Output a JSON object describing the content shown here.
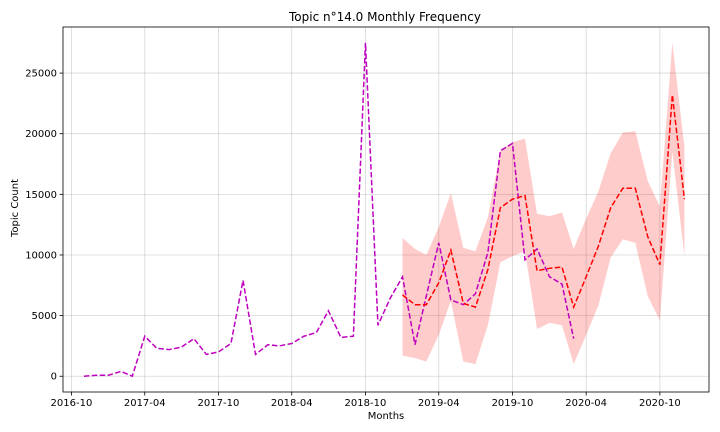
{
  "chart_data": {
    "type": "line",
    "title": "Topic n°14.0 Monthly Frequency",
    "xlabel": "Months",
    "ylabel": "Topic Count",
    "xlim": [
      "2016-09-10",
      "2021-01-31"
    ],
    "ylim": [
      -1300,
      28800
    ],
    "grid": true,
    "x_ticks": [
      "2016-10",
      "2017-04",
      "2017-10",
      "2018-04",
      "2018-10",
      "2019-04",
      "2019-10",
      "2020-04",
      "2020-10"
    ],
    "y_ticks": [
      0,
      5000,
      10000,
      15000,
      20000,
      25000
    ],
    "colors": {
      "observed": "#bf00bf",
      "forecast": "#ff0000",
      "band": "#ff0000"
    },
    "observed": {
      "x": [
        "2016-11",
        "2016-12",
        "2017-01",
        "2017-02",
        "2017-03",
        "2017-04",
        "2017-05",
        "2017-06",
        "2017-07",
        "2017-08",
        "2017-09",
        "2017-10",
        "2017-11",
        "2017-12",
        "2018-01",
        "2018-02",
        "2018-03",
        "2018-04",
        "2018-05",
        "2018-06",
        "2018-07",
        "2018-08",
        "2018-09",
        "2018-10",
        "2018-11",
        "2018-12",
        "2019-01",
        "2019-02",
        "2019-03",
        "2019-04",
        "2019-05",
        "2019-06",
        "2019-07",
        "2019-08",
        "2019-09",
        "2019-10",
        "2019-11",
        "2019-12",
        "2020-01",
        "2020-02",
        "2020-03"
      ],
      "y": [
        0,
        80,
        80,
        400,
        0,
        3300,
        2300,
        2200,
        2400,
        3100,
        1800,
        2000,
        2700,
        7900,
        1800,
        2600,
        2500,
        2700,
        3300,
        3600,
        5400,
        3200,
        3300,
        27500,
        4200,
        6400,
        8200,
        2600,
        6600,
        11000,
        6300,
        5900,
        6800,
        10200,
        18600,
        19200,
        9600,
        10500,
        8200,
        7600,
        3100
      ]
    },
    "forecast": {
      "x": [
        "2019-01",
        "2019-02",
        "2019-03",
        "2019-04",
        "2019-05",
        "2019-06",
        "2019-07",
        "2019-08",
        "2019-09",
        "2019-10",
        "2019-11",
        "2019-12",
        "2020-01",
        "2020-02",
        "2020-03",
        "2020-04",
        "2020-05",
        "2020-06",
        "2020-07",
        "2020-08",
        "2020-09",
        "2020-10",
        "2020-11",
        "2020-12"
      ],
      "y": [
        6700,
        5900,
        5900,
        7700,
        10400,
        6000,
        5700,
        8800,
        13900,
        14600,
        14900,
        8700,
        8900,
        9000,
        5700,
        8200,
        10700,
        13900,
        15500,
        15500,
        11500,
        9200,
        23200,
        14600
      ],
      "lower": [
        1700,
        1500,
        1200,
        3400,
        6200,
        1200,
        1000,
        4200,
        9400,
        9900,
        10300,
        3900,
        4400,
        4200,
        1000,
        3400,
        5800,
        9800,
        11300,
        11000,
        6600,
        4600,
        18500,
        9900
      ],
      "upper": [
        11400,
        10500,
        10000,
        12300,
        15100,
        10600,
        10300,
        13100,
        18600,
        19300,
        19600,
        13400,
        13200,
        13500,
        10500,
        13000,
        15200,
        18400,
        20100,
        20200,
        16100,
        14000,
        27500,
        18900
      ]
    }
  }
}
